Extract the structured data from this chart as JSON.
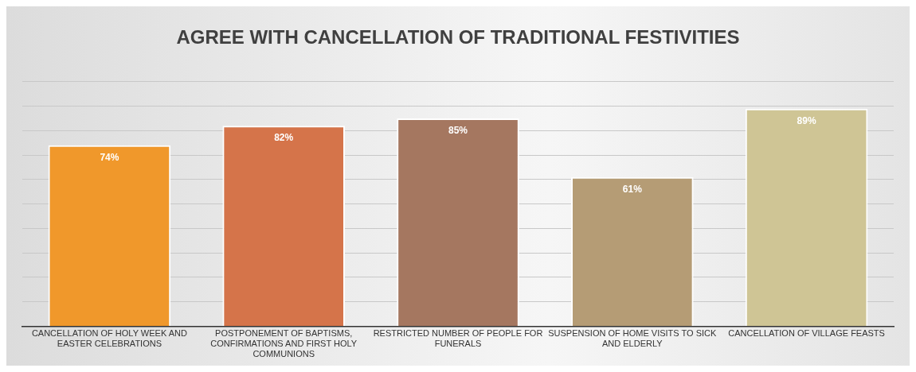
{
  "chart_data": {
    "type": "bar",
    "title": "AGREE WITH CANCELLATION OF TRADITIONAL FESTIVITIES",
    "categories": [
      "CANCELLATION OF HOLY WEEK AND EASTER CELEBRATIONS",
      "POSTPONEMENT OF BAPTISMS, CONFIRMATIONS AND FIRST HOLY COMMUNIONS",
      "RESTRICTED NUMBER OF PEOPLE FOR FUNERALS",
      "SUSPENSION OF HOME VISITS TO SICK AND ELDERLY",
      "CANCELLATION OF VILLAGE FEASTS"
    ],
    "values": [
      74,
      82,
      85,
      61,
      89
    ],
    "value_labels": [
      "74%",
      "82%",
      "85%",
      "61%",
      "89%"
    ],
    "colors": [
      "#f0982b",
      "#d5744a",
      "#a57760",
      "#b59c75",
      "#cfc595"
    ],
    "ylim": [
      0,
      100
    ],
    "tick_labels": "x",
    "grid": "y",
    "legend": false
  }
}
